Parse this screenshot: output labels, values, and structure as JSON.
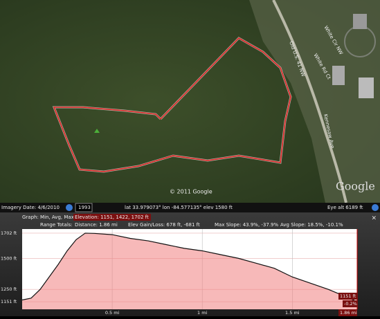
{
  "map": {
    "copyright": "© 2011 Google",
    "logo": "Google",
    "roads": [
      "Old U.S. 41 NW",
      "White Cir NW",
      "White Rd Ct",
      "Kennesaw Ave"
    ]
  },
  "status_bar": {
    "imagery_date": "Imagery Date: 4/6/2010",
    "historic_year": "1993",
    "coordinates": "lat  33.979073°  lon  -84.577135°  elev  1580 ft",
    "eye_alt": "Eye alt  6189 ft"
  },
  "graph_header": {
    "graph_label": "Graph: Min, Avg, Max",
    "elevation": "Elevation: 1151, 1422, 1702 ft",
    "range_totals": "Range Totals:",
    "distance": "Distance: 1.86 mi",
    "gain_loss": "Elev Gain/Loss: 678 ft, -681 ft",
    "max_slope": "Max Slope: 43.9%, -37.9%",
    "avg_slope": "Avg Slope: 18.5%, -10.1%"
  },
  "readout": {
    "elevation": "1151 ft",
    "slope": "-0.2%",
    "distance": "1.86 mi"
  },
  "chart_data": {
    "type": "area",
    "color": "#f08080",
    "x": [
      0,
      0.05,
      0.1,
      0.15,
      0.2,
      0.25,
      0.3,
      0.35,
      0.4,
      0.5,
      0.6,
      0.7,
      0.8,
      0.9,
      1.0,
      1.1,
      1.2,
      1.3,
      1.4,
      1.5,
      1.6,
      1.7,
      1.8,
      1.86
    ],
    "values": [
      1165,
      1180,
      1250,
      1350,
      1450,
      1560,
      1650,
      1702,
      1700,
      1690,
      1660,
      1640,
      1610,
      1580,
      1560,
      1530,
      1500,
      1460,
      1420,
      1350,
      1300,
      1250,
      1190,
      1151
    ],
    "xlim": [
      0,
      1.86
    ],
    "ylim": [
      1090,
      1735
    ],
    "xticks": [
      {
        "value": 0.5,
        "label": "0.5 mi"
      },
      {
        "value": 1,
        "label": "1 mi"
      },
      {
        "value": 1.5,
        "label": "1.5 mi"
      }
    ],
    "yticks": [
      {
        "value": 1151,
        "label": "1151 ft"
      },
      {
        "value": 1250,
        "label": "1250 ft"
      },
      {
        "value": 1500,
        "label": "1500 ft"
      },
      {
        "value": 1702,
        "label": "1702 ft"
      }
    ],
    "grid": true
  }
}
